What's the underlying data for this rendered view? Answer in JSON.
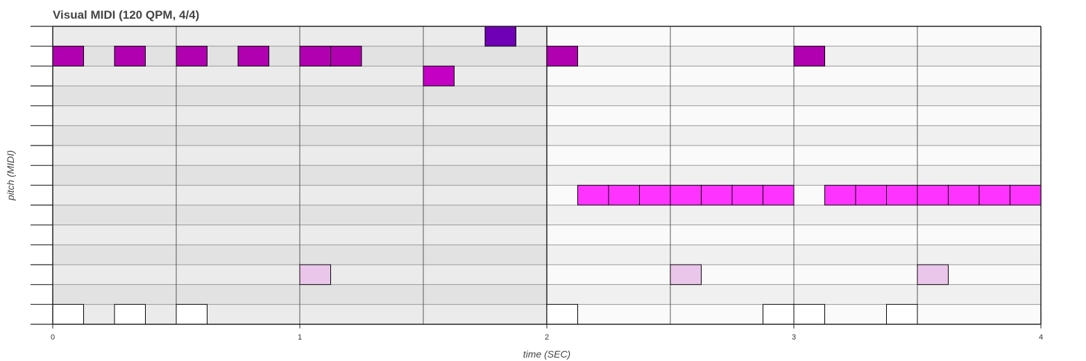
{
  "chart_data": {
    "type": "piano-roll",
    "title": "Visual MIDI (120 QPM, 4/4)",
    "xlabel": "time (SEC)",
    "ylabel": "pitch (MIDI)",
    "xlim": [
      0,
      4
    ],
    "x_ticks": [
      "0",
      "1",
      "2",
      "3",
      "4"
    ],
    "pitch_rows": 15,
    "grid": true,
    "colors": {
      "bar_odd_shade": "#e2e2e2",
      "bar_even_shade": "#f0f0f0",
      "band_light": "#ebebeb",
      "band_light_alt": "#fafafa",
      "gridline": "#999999",
      "beatline": "#555555",
      "note_stroke": "#000000"
    },
    "notes": [
      {
        "start": 1.75,
        "end": 1.875,
        "row": 0,
        "color": "#6f00b5"
      },
      {
        "start": 0.0,
        "end": 0.125,
        "row": 1,
        "color": "#b000b0"
      },
      {
        "start": 0.25,
        "end": 0.375,
        "row": 1,
        "color": "#b000b0"
      },
      {
        "start": 0.5,
        "end": 0.625,
        "row": 1,
        "color": "#b000b0"
      },
      {
        "start": 0.75,
        "end": 0.875,
        "row": 1,
        "color": "#b000b0"
      },
      {
        "start": 1.0,
        "end": 1.125,
        "row": 1,
        "color": "#b000b0"
      },
      {
        "start": 1.125,
        "end": 1.25,
        "row": 1,
        "color": "#b000b0"
      },
      {
        "start": 2.0,
        "end": 2.125,
        "row": 1,
        "color": "#b000b0"
      },
      {
        "start": 3.0,
        "end": 3.125,
        "row": 1,
        "color": "#b000b0"
      },
      {
        "start": 1.5,
        "end": 1.625,
        "row": 2,
        "color": "#c400c4"
      },
      {
        "start": 2.125,
        "end": 2.25,
        "row": 8,
        "color": "#ff33ff"
      },
      {
        "start": 2.25,
        "end": 2.375,
        "row": 8,
        "color": "#ff33ff"
      },
      {
        "start": 2.375,
        "end": 2.5,
        "row": 8,
        "color": "#ff33ff"
      },
      {
        "start": 2.5,
        "end": 2.625,
        "row": 8,
        "color": "#ff33ff"
      },
      {
        "start": 2.625,
        "end": 2.75,
        "row": 8,
        "color": "#ff33ff"
      },
      {
        "start": 2.75,
        "end": 2.875,
        "row": 8,
        "color": "#ff33ff"
      },
      {
        "start": 2.875,
        "end": 3.0,
        "row": 8,
        "color": "#ff33ff"
      },
      {
        "start": 3.125,
        "end": 3.25,
        "row": 8,
        "color": "#ff33ff"
      },
      {
        "start": 3.25,
        "end": 3.375,
        "row": 8,
        "color": "#ff33ff"
      },
      {
        "start": 3.375,
        "end": 3.5,
        "row": 8,
        "color": "#ff33ff"
      },
      {
        "start": 3.5,
        "end": 3.625,
        "row": 8,
        "color": "#ff33ff"
      },
      {
        "start": 3.625,
        "end": 3.75,
        "row": 8,
        "color": "#ff33ff"
      },
      {
        "start": 3.75,
        "end": 3.875,
        "row": 8,
        "color": "#ff33ff"
      },
      {
        "start": 3.875,
        "end": 4.0,
        "row": 8,
        "color": "#ff33ff"
      },
      {
        "start": 1.0,
        "end": 1.125,
        "row": 12,
        "color": "#ebc6eb"
      },
      {
        "start": 2.5,
        "end": 2.625,
        "row": 12,
        "color": "#ebc6eb"
      },
      {
        "start": 3.5,
        "end": 3.625,
        "row": 12,
        "color": "#ebc6eb"
      },
      {
        "start": 0.0,
        "end": 0.125,
        "row": 14,
        "color": "#ffffff"
      },
      {
        "start": 0.25,
        "end": 0.375,
        "row": 14,
        "color": "#ffffff"
      },
      {
        "start": 0.5,
        "end": 0.625,
        "row": 14,
        "color": "#ffffff"
      },
      {
        "start": 2.0,
        "end": 2.125,
        "row": 14,
        "color": "#ffffff"
      },
      {
        "start": 2.875,
        "end": 3.0,
        "row": 14,
        "color": "#ffffff"
      },
      {
        "start": 3.0,
        "end": 3.125,
        "row": 14,
        "color": "#ffffff"
      },
      {
        "start": 3.375,
        "end": 3.5,
        "row": 14,
        "color": "#ffffff"
      }
    ]
  }
}
